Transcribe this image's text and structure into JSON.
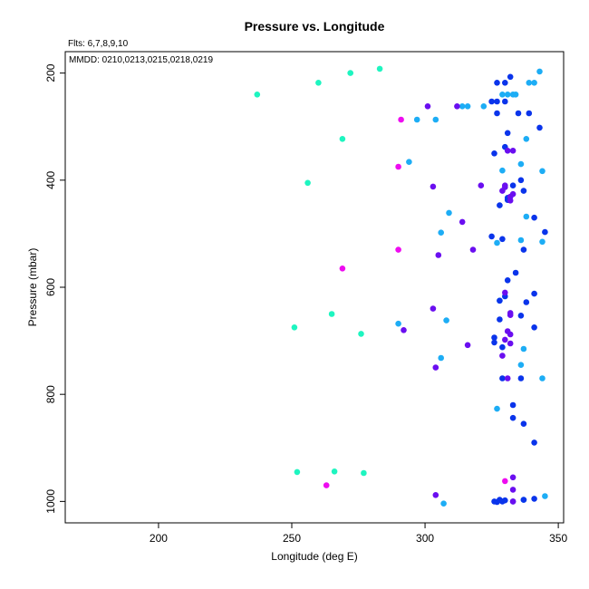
{
  "chart_data": {
    "type": "scatter",
    "title": "Pressure vs. Longitude",
    "xlabel": "Longitude (deg E)",
    "ylabel": "Pressure (mbar)",
    "annotations": {
      "fits": "Flts: 6,7,8,9,10",
      "mmdd": "MMDD: 0210,0213,0215,0218,0219"
    },
    "xlim": [
      165,
      352
    ],
    "ylim": [
      1040,
      160
    ],
    "y_inverted": true,
    "grid": false,
    "xticks": [
      200,
      250,
      300,
      350
    ],
    "yticks": [
      200,
      400,
      600,
      800,
      1000
    ],
    "colors": {
      "flight_6": "#1ef5c0",
      "flight_7": "#1dadf5",
      "flight_8": "#0a34eb",
      "flight_9": "#6a0ef0",
      "flight_10": "#ee0cf0"
    },
    "series": [
      {
        "color": "#1ef5c0",
        "x": [
          237,
          260,
          272,
          283,
          256,
          269,
          251,
          265,
          276,
          252,
          266,
          277
        ],
        "y": [
          240,
          218,
          200,
          192,
          405,
          323,
          675,
          650,
          687,
          945,
          944,
          947
        ]
      },
      {
        "color": "#1dadf5",
        "x": [
          343,
          339,
          341,
          333,
          331,
          329,
          334,
          322,
          314,
          316,
          304,
          297,
          294,
          329,
          338,
          336,
          344,
          309,
          306,
          338,
          336,
          344,
          327,
          328,
          290,
          308,
          306,
          337,
          336,
          344,
          327,
          337,
          345,
          307
        ],
        "y": [
          197,
          218,
          218,
          240,
          240,
          240,
          240,
          262,
          262,
          262,
          287,
          287,
          366,
          382,
          323,
          370,
          383,
          461,
          498,
          468,
          512,
          515,
          517,
          625,
          668,
          662,
          732,
          715,
          745,
          770,
          827,
          997,
          990,
          1004
        ]
      },
      {
        "color": "#0a34eb",
        "x": [
          332,
          327,
          330,
          325,
          327,
          330,
          326,
          327,
          335,
          339,
          331,
          343,
          330,
          336,
          333,
          337,
          331,
          331,
          328,
          341,
          325,
          329,
          337,
          345,
          328,
          338,
          330,
          334,
          341,
          331,
          326,
          329,
          336,
          341,
          326,
          328,
          329,
          336,
          333,
          333,
          337,
          341,
          326,
          327,
          328,
          329,
          330,
          333,
          341,
          337
        ],
        "y": [
          207,
          218,
          218,
          253,
          253,
          253,
          350,
          275,
          275,
          275,
          312,
          302,
          338,
          400,
          410,
          420,
          433,
          437,
          447,
          470,
          505,
          510,
          530,
          497,
          625,
          628,
          617,
          573,
          612,
          587,
          703,
          712,
          653,
          675,
          694,
          660,
          770,
          770,
          844,
          820,
          855,
          890,
          1000,
          1001,
          997,
          1000,
          998,
          1000,
          995,
          997
        ]
      },
      {
        "color": "#6a0ef0",
        "x": [
          301,
          312,
          303,
          321,
          314,
          318,
          305,
          303,
          292,
          304,
          316,
          330,
          330,
          329,
          333,
          331,
          333,
          332,
          332,
          330,
          332,
          332,
          332,
          329,
          330,
          331,
          332,
          331,
          333,
          333,
          304,
          333
        ],
        "y": [
          262,
          262,
          412,
          410,
          478,
          530,
          540,
          640,
          680,
          750,
          708,
          410,
          413,
          420,
          345,
          345,
          426,
          438,
          431,
          610,
          652,
          648,
          688,
          728,
          698,
          682,
          705,
          770,
          955,
          978,
          988,
          1000
        ]
      },
      {
        "color": "#ee0cf0",
        "x": [
          291,
          290,
          290,
          269,
          263,
          330
        ],
        "y": [
          287,
          375,
          530,
          565,
          970,
          962
        ]
      }
    ]
  }
}
